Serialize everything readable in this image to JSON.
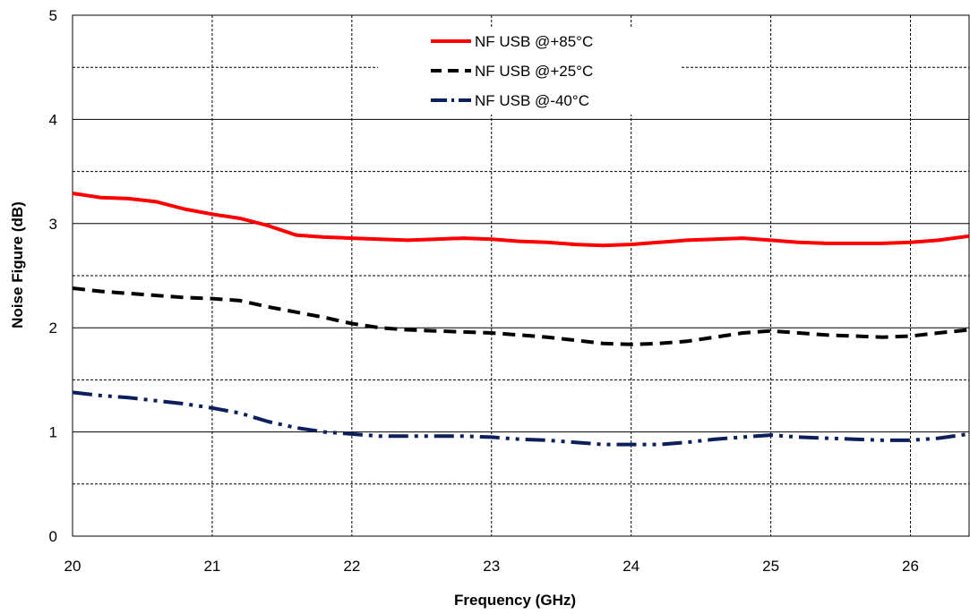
{
  "chart_data": {
    "type": "line",
    "xlabel": "Frequency (GHz)",
    "ylabel": "Noise Figure (dB)",
    "xlim": [
      20,
      26.42
    ],
    "ylim": [
      0,
      5
    ],
    "x_ticks": [
      "20",
      "21",
      "22",
      "23",
      "24",
      "25",
      "26"
    ],
    "y_ticks": [
      "0",
      "1",
      "2",
      "3",
      "4",
      "5"
    ],
    "grid": "major solid, minor dashed",
    "legend_position": "top-center",
    "series": [
      {
        "name": "NF USB @+85°C",
        "color": "#ff0000",
        "style": "solid",
        "x": [
          20.0,
          20.2,
          20.4,
          20.6,
          20.8,
          21.0,
          21.2,
          21.4,
          21.6,
          21.8,
          22.0,
          22.2,
          22.4,
          22.6,
          22.8,
          23.0,
          23.2,
          23.4,
          23.6,
          23.8,
          24.0,
          24.2,
          24.4,
          24.6,
          24.8,
          25.0,
          25.2,
          25.4,
          25.6,
          25.8,
          26.0,
          26.2,
          26.42
        ],
        "y": [
          3.29,
          3.25,
          3.24,
          3.21,
          3.14,
          3.09,
          3.05,
          2.98,
          2.89,
          2.87,
          2.86,
          2.85,
          2.84,
          2.85,
          2.86,
          2.85,
          2.83,
          2.82,
          2.8,
          2.79,
          2.8,
          2.82,
          2.84,
          2.85,
          2.86,
          2.84,
          2.82,
          2.81,
          2.81,
          2.81,
          2.82,
          2.84,
          2.88
        ]
      },
      {
        "name": "NF USB @+25°C",
        "color": "#000000",
        "style": "dashed",
        "x": [
          20.0,
          20.2,
          20.4,
          20.6,
          20.8,
          21.0,
          21.2,
          21.4,
          21.6,
          21.8,
          22.0,
          22.2,
          22.4,
          22.6,
          22.8,
          23.0,
          23.2,
          23.4,
          23.6,
          23.8,
          24.0,
          24.2,
          24.4,
          24.6,
          24.8,
          25.0,
          25.2,
          25.4,
          25.6,
          25.8,
          26.0,
          26.2,
          26.42
        ],
        "y": [
          2.38,
          2.35,
          2.33,
          2.31,
          2.29,
          2.28,
          2.26,
          2.2,
          2.15,
          2.1,
          2.04,
          2.0,
          1.98,
          1.97,
          1.96,
          1.95,
          1.93,
          1.91,
          1.88,
          1.85,
          1.84,
          1.85,
          1.87,
          1.91,
          1.95,
          1.97,
          1.95,
          1.93,
          1.92,
          1.91,
          1.92,
          1.95,
          1.98
        ]
      },
      {
        "name": "NF USB @-40°C",
        "color": "#0a1f5c",
        "style": "dash-dot-dot",
        "x": [
          20.0,
          20.2,
          20.4,
          20.6,
          20.8,
          21.0,
          21.2,
          21.4,
          21.6,
          21.8,
          22.0,
          22.2,
          22.4,
          22.6,
          22.8,
          23.0,
          23.2,
          23.4,
          23.6,
          23.8,
          24.0,
          24.2,
          24.4,
          24.6,
          24.8,
          25.0,
          25.2,
          25.4,
          25.6,
          25.8,
          26.0,
          26.2,
          26.42
        ],
        "y": [
          1.38,
          1.35,
          1.33,
          1.3,
          1.27,
          1.23,
          1.18,
          1.1,
          1.04,
          1.0,
          0.98,
          0.96,
          0.96,
          0.96,
          0.96,
          0.95,
          0.93,
          0.92,
          0.9,
          0.88,
          0.88,
          0.88,
          0.9,
          0.93,
          0.95,
          0.97,
          0.95,
          0.94,
          0.93,
          0.92,
          0.92,
          0.94,
          0.98
        ]
      }
    ]
  }
}
